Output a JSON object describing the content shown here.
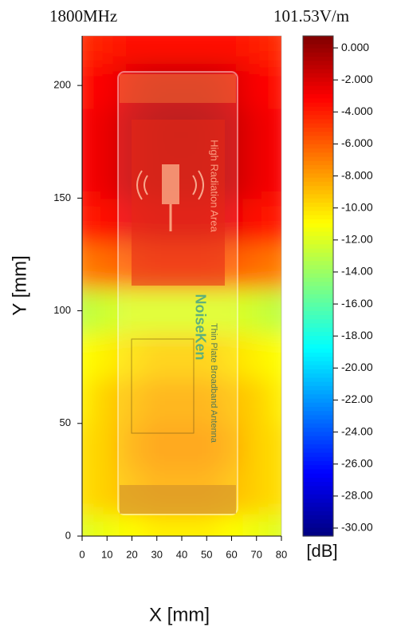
{
  "chart_data": {
    "type": "heatmap",
    "title": "1800MHz",
    "subtitle": "101.53V/m",
    "x_label": "X [mm]",
    "y_label": "Y [mm]",
    "colorbar_label": "[dB]",
    "x": [
      0,
      10,
      20,
      30,
      40,
      50,
      60,
      70,
      80
    ],
    "y": [
      0,
      20,
      40,
      60,
      80,
      100,
      120,
      140,
      160,
      180,
      200,
      220
    ],
    "z": [
      [
        -12,
        -11.5,
        -11,
        -10.5,
        -10.5,
        -10.5,
        -11,
        -11.5,
        -12
      ],
      [
        -10,
        -9.5,
        -9,
        -8.5,
        -8.5,
        -8.5,
        -9,
        -9.5,
        -10
      ],
      [
        -10,
        -9.5,
        -8.5,
        -8,
        -8,
        -8,
        -8.5,
        -9.5,
        -10
      ],
      [
        -10.5,
        -9.5,
        -9,
        -8.5,
        -8.5,
        -8.5,
        -9,
        -9.5,
        -10.5
      ],
      [
        -11,
        -10.5,
        -10,
        -9.5,
        -9.5,
        -9.5,
        -10,
        -10.5,
        -11
      ],
      [
        -13,
        -12.5,
        -12,
        -12,
        -12,
        -12,
        -12,
        -12.5,
        -13
      ],
      [
        -7,
        -6.5,
        -6,
        -5.5,
        -5.5,
        -5.5,
        -6,
        -6.5,
        -7
      ],
      [
        -4,
        -3.5,
        -2.5,
        -2,
        -2,
        -2,
        -2.5,
        -3.5,
        -4
      ],
      [
        -3,
        -2.5,
        -1.5,
        -1,
        -1,
        -1,
        -1.5,
        -2.5,
        -3
      ],
      [
        -3,
        -2.5,
        -1.5,
        -1,
        -0.8,
        -1,
        -1.5,
        -2.5,
        -3
      ],
      [
        -3.5,
        -3,
        -2,
        -1.5,
        -1.5,
        -1.5,
        -2,
        -3,
        -3.5
      ],
      [
        -4.5,
        -4,
        -3.5,
        -3.5,
        -3.5,
        -3.5,
        -3.5,
        -4,
        -4.5
      ]
    ],
    "xlim": [
      0,
      80
    ],
    "ylim": [
      0,
      222
    ],
    "xticks": [
      0,
      10,
      20,
      30,
      40,
      50,
      60,
      70,
      80
    ],
    "yticks": [
      0,
      50,
      100,
      150,
      200
    ],
    "colorscale": "jet",
    "clim": [
      -30.5,
      0.75
    ],
    "cticks": [
      {
        "value": 0,
        "label": "0.000"
      },
      {
        "value": -2,
        "label": "-2.000"
      },
      {
        "value": -4,
        "label": "-4.000"
      },
      {
        "value": -6,
        "label": "-6.000"
      },
      {
        "value": -8,
        "label": "-8.000"
      },
      {
        "value": -10,
        "label": "-10.00"
      },
      {
        "value": -12,
        "label": "-12.00"
      },
      {
        "value": -14,
        "label": "-14.00"
      },
      {
        "value": -16,
        "label": "-16.00"
      },
      {
        "value": -18,
        "label": "-18.00"
      },
      {
        "value": -20,
        "label": "-20.00"
      },
      {
        "value": -22,
        "label": "-22.00"
      },
      {
        "value": -24,
        "label": "-24.00"
      },
      {
        "value": -26,
        "label": "-26.00"
      },
      {
        "value": -28,
        "label": "-28.00"
      },
      {
        "value": -30,
        "label": "-30.00"
      }
    ],
    "annotations": [
      "High Radiation Area",
      "NoiseKen",
      "Thin Plate Broadband Antenna"
    ]
  }
}
